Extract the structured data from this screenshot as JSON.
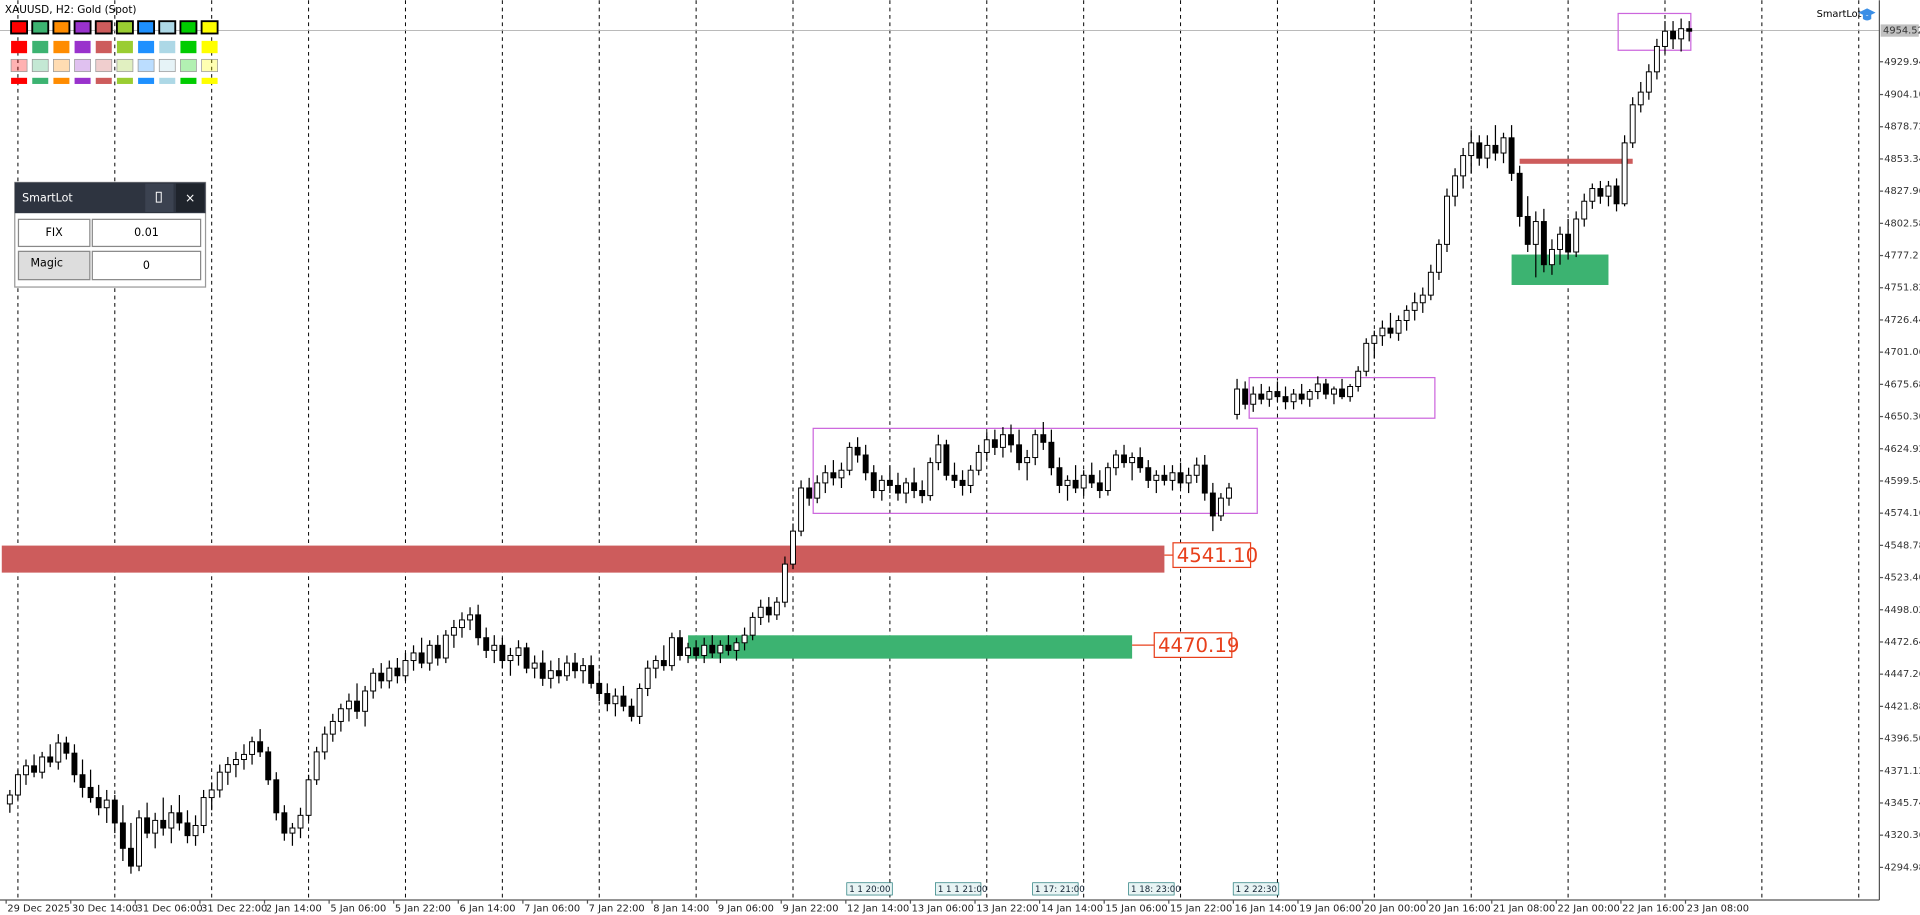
{
  "chart_data": {
    "type": "candlestick",
    "title": "XAUUSD, H2:  Gold (Spot)",
    "indicator_label": "SmartLot",
    "ylim": [
      4269.3,
      4978.4
    ],
    "yticks": [
      4929.94,
      {
        "value": 4904.1,
        "label": "4904.10"
      },
      4878.72,
      4853.34,
      4827.96,
      4802.58,
      4777.2,
      4751.82,
      4726.44,
      4701.06,
      4675.68,
      {
        "value": 4650.3,
        "label": "4650.30"
      },
      4624.92,
      4599.54,
      4574.16,
      4548.78,
      {
        "value": 4523.4,
        "label": "4523.40"
      },
      4498.02,
      4472.64,
      4447.26,
      4421.88,
      {
        "value": 4396.5,
        "label": "4396.50"
      },
      4371.12,
      4345.74,
      4320.36,
      4294.98
    ],
    "xlim": [
      -1,
      232
    ],
    "xticks": [
      {
        "value": 0,
        "label": "29 Dec 2025"
      },
      {
        "value": 8,
        "label": "30 Dec 14:00"
      },
      {
        "value": 16,
        "label": "31 Dec 06:00"
      },
      {
        "value": 24,
        "label": "31 Dec 22:00"
      },
      {
        "value": 32,
        "label": "2 Jan 14:00"
      },
      {
        "value": 40,
        "label": "5 Jan 06:00"
      },
      {
        "value": 48,
        "label": "5 Jan 22:00"
      },
      {
        "value": 56,
        "label": "6 Jan 14:00"
      },
      {
        "value": 64,
        "label": "7 Jan 06:00"
      },
      {
        "value": 72,
        "label": "7 Jan 22:00"
      },
      {
        "value": 80,
        "label": "8 Jan 14:00"
      },
      {
        "value": 88,
        "label": "9 Jan 06:00"
      },
      {
        "value": 96,
        "label": "9 Jan 22:00"
      },
      {
        "value": 104,
        "label": "12 Jan 14:00"
      },
      {
        "value": 112,
        "label": "13 Jan 06:00"
      },
      {
        "value": 120,
        "label": "13 Jan 22:00"
      },
      {
        "value": 128,
        "label": "14 Jan 14:00"
      },
      {
        "value": 136,
        "label": "15 Jan 06:00"
      },
      {
        "value": 144,
        "label": "15 Jan 22:00"
      },
      {
        "value": 152,
        "label": "16 Jan 14:00"
      },
      {
        "value": 160,
        "label": "19 Jan 06:00"
      },
      {
        "value": 168,
        "label": "20 Jan 00:00"
      },
      {
        "value": 176,
        "label": "20 Jan 16:00"
      },
      {
        "value": 184,
        "label": "21 Jan 08:00"
      },
      {
        "value": 192,
        "label": "22 Jan 00:00"
      },
      {
        "value": 200,
        "label": "22 Jan 16:00"
      },
      {
        "value": 208,
        "label": "23 Jan 08:00"
      }
    ],
    "current_price": 4954.52,
    "candles": [
      [
        4345,
        4356,
        4338,
        4352
      ],
      [
        4352,
        4372,
        4348,
        4368
      ],
      [
        4368,
        4380,
        4360,
        4375
      ],
      [
        4375,
        4384,
        4366,
        4370
      ],
      [
        4370,
        4386,
        4365,
        4382
      ],
      [
        4382,
        4392,
        4374,
        4378
      ],
      [
        4378,
        4400,
        4372,
        4393
      ],
      [
        4393,
        4398,
        4380,
        4385
      ],
      [
        4385,
        4392,
        4362,
        4368
      ],
      [
        4368,
        4380,
        4350,
        4358
      ],
      [
        4358,
        4372,
        4346,
        4350
      ],
      [
        4350,
        4360,
        4336,
        4342
      ],
      [
        4342,
        4356,
        4330,
        4348
      ],
      [
        4348,
        4352,
        4322,
        4330
      ],
      [
        4330,
        4344,
        4300,
        4310
      ],
      [
        4310,
        4330,
        4290,
        4296
      ],
      [
        4296,
        4340,
        4292,
        4334
      ],
      [
        4334,
        4346,
        4318,
        4322
      ],
      [
        4322,
        4338,
        4310,
        4332
      ],
      [
        4332,
        4350,
        4320,
        4326
      ],
      [
        4326,
        4344,
        4314,
        4338
      ],
      [
        4338,
        4352,
        4324,
        4330
      ],
      [
        4330,
        4340,
        4314,
        4320
      ],
      [
        4320,
        4336,
        4312,
        4328
      ],
      [
        4328,
        4356,
        4322,
        4350
      ],
      [
        4350,
        4362,
        4340,
        4356
      ],
      [
        4356,
        4376,
        4350,
        4370
      ],
      [
        4370,
        4382,
        4360,
        4376
      ],
      [
        4376,
        4386,
        4366,
        4380
      ],
      [
        4380,
        4392,
        4372,
        4384
      ],
      [
        4384,
        4398,
        4376,
        4394
      ],
      [
        4394,
        4404,
        4382,
        4386
      ],
      [
        4386,
        4390,
        4360,
        4364
      ],
      [
        4364,
        4370,
        4332,
        4338
      ],
      [
        4338,
        4344,
        4316,
        4322
      ],
      [
        4322,
        4330,
        4312,
        4326
      ],
      [
        4326,
        4342,
        4318,
        4336
      ],
      [
        4336,
        4368,
        4332,
        4364
      ],
      [
        4364,
        4390,
        4360,
        4386
      ],
      [
        4386,
        4406,
        4380,
        4400
      ],
      [
        4400,
        4416,
        4394,
        4410
      ],
      [
        4410,
        4424,
        4402,
        4420
      ],
      [
        4420,
        4432,
        4410,
        4426
      ],
      [
        4426,
        4440,
        4412,
        4418
      ],
      [
        4418,
        4438,
        4406,
        4434
      ],
      [
        4434,
        4452,
        4428,
        4448
      ],
      [
        4448,
        4456,
        4436,
        4442
      ],
      [
        4442,
        4458,
        4436,
        4452
      ],
      [
        4452,
        4460,
        4440,
        4446
      ],
      [
        4446,
        4464,
        4442,
        4458
      ],
      [
        4458,
        4470,
        4450,
        4464
      ],
      [
        4464,
        4476,
        4452,
        4456
      ],
      [
        4456,
        4474,
        4450,
        4470
      ],
      [
        4470,
        4478,
        4454,
        4460
      ],
      [
        4460,
        4482,
        4456,
        4478
      ],
      [
        4478,
        4490,
        4468,
        4484
      ],
      [
        4484,
        4496,
        4476,
        4490
      ],
      [
        4490,
        4500,
        4482,
        4494
      ],
      [
        4494,
        4502,
        4470,
        4476
      ],
      [
        4476,
        4484,
        4460,
        4466
      ],
      [
        4466,
        4478,
        4456,
        4470
      ],
      [
        4470,
        4476,
        4452,
        4458
      ],
      [
        4458,
        4468,
        4446,
        4462
      ],
      [
        4462,
        4474,
        4454,
        4468
      ],
      [
        4468,
        4472,
        4448,
        4452
      ],
      [
        4452,
        4462,
        4444,
        4456
      ],
      [
        4456,
        4466,
        4438,
        4444
      ],
      [
        4444,
        4458,
        4436,
        4450
      ],
      [
        4450,
        4460,
        4440,
        4446
      ],
      [
        4446,
        4462,
        4442,
        4456
      ],
      [
        4456,
        4464,
        4444,
        4450
      ],
      [
        4450,
        4460,
        4440,
        4454
      ],
      [
        4454,
        4462,
        4436,
        4440
      ],
      [
        4440,
        4450,
        4426,
        4432
      ],
      [
        4432,
        4440,
        4418,
        4424
      ],
      [
        4424,
        4436,
        4414,
        4430
      ],
      [
        4430,
        4438,
        4418,
        4422
      ],
      [
        4422,
        4428,
        4410,
        4414
      ],
      [
        4414,
        4440,
        4408,
        4436
      ],
      [
        4436,
        4458,
        4430,
        4452
      ],
      [
        4452,
        4462,
        4444,
        4458
      ],
      [
        4458,
        4470,
        4450,
        4454
      ],
      [
        4454,
        4480,
        4450,
        4476
      ],
      [
        4476,
        4482,
        4458,
        4462
      ],
      [
        4462,
        4472,
        4456,
        4468
      ],
      [
        4468,
        4474,
        4458,
        4462
      ],
      [
        4462,
        4476,
        4456,
        4470
      ],
      [
        4470,
        4478,
        4460,
        4464
      ],
      [
        4464,
        4474,
        4456,
        4470
      ],
      [
        4470,
        4478,
        4462,
        4466
      ],
      [
        4466,
        4476,
        4458,
        4472
      ],
      [
        4472,
        4484,
        4466,
        4478
      ],
      [
        4478,
        4496,
        4474,
        4492
      ],
      [
        4492,
        4506,
        4486,
        4500
      ],
      [
        4500,
        4508,
        4488,
        4494
      ],
      [
        4494,
        4508,
        4490,
        4504
      ],
      [
        4504,
        4540,
        4500,
        4534
      ],
      [
        4534,
        4566,
        4530,
        4560
      ],
      [
        4560,
        4600,
        4556,
        4594
      ],
      [
        4594,
        4602,
        4580,
        4586
      ],
      [
        4586,
        4604,
        4582,
        4598
      ],
      [
        4598,
        4612,
        4590,
        4606
      ],
      [
        4606,
        4616,
        4596,
        4602
      ],
      [
        4602,
        4614,
        4594,
        4608
      ],
      [
        4608,
        4630,
        4604,
        4626
      ],
      [
        4626,
        4634,
        4614,
        4620
      ],
      [
        4620,
        4628,
        4600,
        4606
      ],
      [
        4606,
        4612,
        4586,
        4592
      ],
      [
        4592,
        4604,
        4584,
        4600
      ],
      [
        4600,
        4612,
        4590,
        4596
      ],
      [
        4596,
        4606,
        4584,
        4590
      ],
      [
        4590,
        4602,
        4582,
        4598
      ],
      [
        4598,
        4610,
        4586,
        4592
      ],
      [
        4592,
        4600,
        4582,
        4588
      ],
      [
        4588,
        4618,
        4584,
        4614
      ],
      [
        4614,
        4636,
        4608,
        4628
      ],
      [
        4628,
        4632,
        4600,
        4604
      ],
      [
        4604,
        4614,
        4594,
        4600
      ],
      [
        4600,
        4608,
        4588,
        4596
      ],
      [
        4596,
        4612,
        4590,
        4608
      ],
      [
        4608,
        4628,
        4604,
        4622
      ],
      [
        4622,
        4638,
        4616,
        4632
      ],
      [
        4632,
        4640,
        4620,
        4626
      ],
      [
        4626,
        4642,
        4618,
        4636
      ],
      [
        4636,
        4644,
        4622,
        4628
      ],
      [
        4628,
        4640,
        4608,
        4614
      ],
      [
        4614,
        4624,
        4600,
        4618
      ],
      [
        4618,
        4640,
        4612,
        4636
      ],
      [
        4636,
        4646,
        4624,
        4630
      ],
      [
        4630,
        4640,
        4604,
        4610
      ],
      [
        4610,
        4618,
        4590,
        4596
      ],
      [
        4596,
        4604,
        4584,
        4600
      ],
      [
        4600,
        4612,
        4590,
        4594
      ],
      [
        4594,
        4608,
        4588,
        4604
      ],
      [
        4604,
        4614,
        4594,
        4598
      ],
      [
        4598,
        4608,
        4586,
        4592
      ],
      [
        4592,
        4614,
        4588,
        4610
      ],
      [
        4610,
        4624,
        4604,
        4620
      ],
      [
        4620,
        4628,
        4610,
        4614
      ],
      [
        4614,
        4622,
        4600,
        4618
      ],
      [
        4618,
        4626,
        4606,
        4610
      ],
      [
        4610,
        4616,
        4594,
        4600
      ],
      [
        4600,
        4608,
        4590,
        4604
      ],
      [
        4604,
        4612,
        4596,
        4600
      ],
      [
        4600,
        4612,
        4592,
        4606
      ],
      [
        4606,
        4614,
        4594,
        4598
      ],
      [
        4598,
        4610,
        4590,
        4604
      ],
      [
        4604,
        4618,
        4598,
        4612
      ],
      [
        4612,
        4620,
        4584,
        4590
      ],
      [
        4590,
        4598,
        4560,
        4572
      ],
      [
        4572,
        4590,
        4568,
        4586
      ],
      [
        4586,
        4598,
        4580,
        4594
      ],
      [
        4652,
        4680,
        4648,
        4672
      ],
      [
        4672,
        4678,
        4656,
        4660
      ],
      [
        4660,
        4674,
        4654,
        4668
      ],
      [
        4668,
        4676,
        4660,
        4664
      ],
      [
        4664,
        4674,
        4658,
        4670
      ],
      [
        4670,
        4678,
        4662,
        4666
      ],
      [
        4666,
        4674,
        4656,
        4662
      ],
      [
        4662,
        4672,
        4656,
        4668
      ],
      [
        4668,
        4676,
        4660,
        4664
      ],
      [
        4664,
        4672,
        4658,
        4670
      ],
      [
        4670,
        4682,
        4664,
        4676
      ],
      [
        4676,
        4680,
        4664,
        4668
      ],
      [
        4668,
        4674,
        4660,
        4672
      ],
      [
        4672,
        4680,
        4664,
        4666
      ],
      [
        4666,
        4676,
        4662,
        4674
      ],
      [
        4674,
        4690,
        4670,
        4686
      ],
      [
        4686,
        4712,
        4682,
        4708
      ],
      [
        4708,
        4718,
        4696,
        4714
      ],
      [
        4714,
        4726,
        4706,
        4720
      ],
      [
        4720,
        4732,
        4712,
        4716
      ],
      [
        4716,
        4730,
        4710,
        4726
      ],
      [
        4726,
        4738,
        4718,
        4734
      ],
      [
        4734,
        4748,
        4726,
        4740
      ],
      [
        4740,
        4752,
        4732,
        4746
      ],
      [
        4746,
        4770,
        4742,
        4764
      ],
      [
        4764,
        4790,
        4758,
        4786
      ],
      [
        4786,
        4830,
        4780,
        4824
      ],
      [
        4824,
        4846,
        4816,
        4840
      ],
      [
        4840,
        4862,
        4830,
        4856
      ],
      [
        4856,
        4876,
        4842,
        4866
      ],
      [
        4866,
        4872,
        4848,
        4854
      ],
      [
        4854,
        4872,
        4846,
        4864
      ],
      [
        4864,
        4880,
        4852,
        4858
      ],
      [
        4858,
        4874,
        4850,
        4870
      ],
      [
        4870,
        4880,
        4836,
        4842
      ],
      [
        4842,
        4848,
        4800,
        4808
      ],
      [
        4808,
        4824,
        4780,
        4786
      ],
      [
        4786,
        4812,
        4760,
        4804
      ],
      [
        4804,
        4814,
        4764,
        4770
      ],
      [
        4770,
        4790,
        4762,
        4782
      ],
      [
        4782,
        4800,
        4770,
        4794
      ],
      [
        4794,
        4806,
        4774,
        4780
      ],
      [
        4780,
        4812,
        4776,
        4806
      ],
      [
        4806,
        4826,
        4800,
        4820
      ],
      [
        4820,
        4834,
        4814,
        4830
      ],
      [
        4830,
        4836,
        4818,
        4824
      ],
      [
        4824,
        4836,
        4816,
        4832
      ],
      [
        4832,
        4838,
        4812,
        4818
      ],
      [
        4818,
        4872,
        4816,
        4866
      ],
      [
        4866,
        4902,
        4862,
        4896
      ],
      [
        4896,
        4914,
        4890,
        4906
      ],
      [
        4906,
        4928,
        4900,
        4922
      ],
      [
        4922,
        4948,
        4916,
        4942
      ],
      [
        4942,
        4962,
        4936,
        4954
      ],
      [
        4954,
        4962,
        4940,
        4948
      ],
      [
        4948,
        4964,
        4938,
        4956
      ],
      [
        4956,
        4962,
        4946,
        4954
      ]
    ],
    "rectangles": [
      {
        "x": [
          -1,
          143
        ],
        "y": [
          4527.3,
          4548.6
        ],
        "color": "#cd5c5c",
        "filled": true,
        "label": {
          "value": 4541.1,
          "label": "4541.10"
        }
      },
      {
        "x": [
          84,
          139
        ],
        "y": [
          4459.5,
          4477.9
        ],
        "color": "#3cb371",
        "filled": true,
        "label": 4470.19
      },
      {
        "x": [
          187,
          201
        ],
        "y": [
          4849.5,
          4853.5
        ],
        "color": "#cd5c5c",
        "filled": true
      },
      {
        "x": [
          186,
          198
        ],
        "y": [
          4754,
          4778
        ],
        "color": "#3cb371",
        "filled": true
      },
      {
        "x": [
          99.5,
          154.5
        ],
        "y": [
          4574,
          4641
        ],
        "color": "#cc66dd",
        "filled": false
      },
      {
        "x": [
          153.5,
          176.5
        ],
        "y": [
          4649,
          4681
        ],
        "color": "#cc66dd",
        "filled": false
      },
      {
        "x": [
          199.2,
          208.2
        ],
        "y": [
          4939,
          4968
        ],
        "color": "#cc66dd",
        "filled": false
      }
    ],
    "time_markers": [
      "1 1 20:00",
      "1 1 1 21:00",
      "1 17: 21:00",
      "1 18: 23:00",
      "1 2 22:30"
    ],
    "panel": {
      "title": "SmartLot",
      "mode": "FIX",
      "lot": "0.01",
      "magic_label": "Magic",
      "magic": "0",
      "close": "×"
    }
  }
}
